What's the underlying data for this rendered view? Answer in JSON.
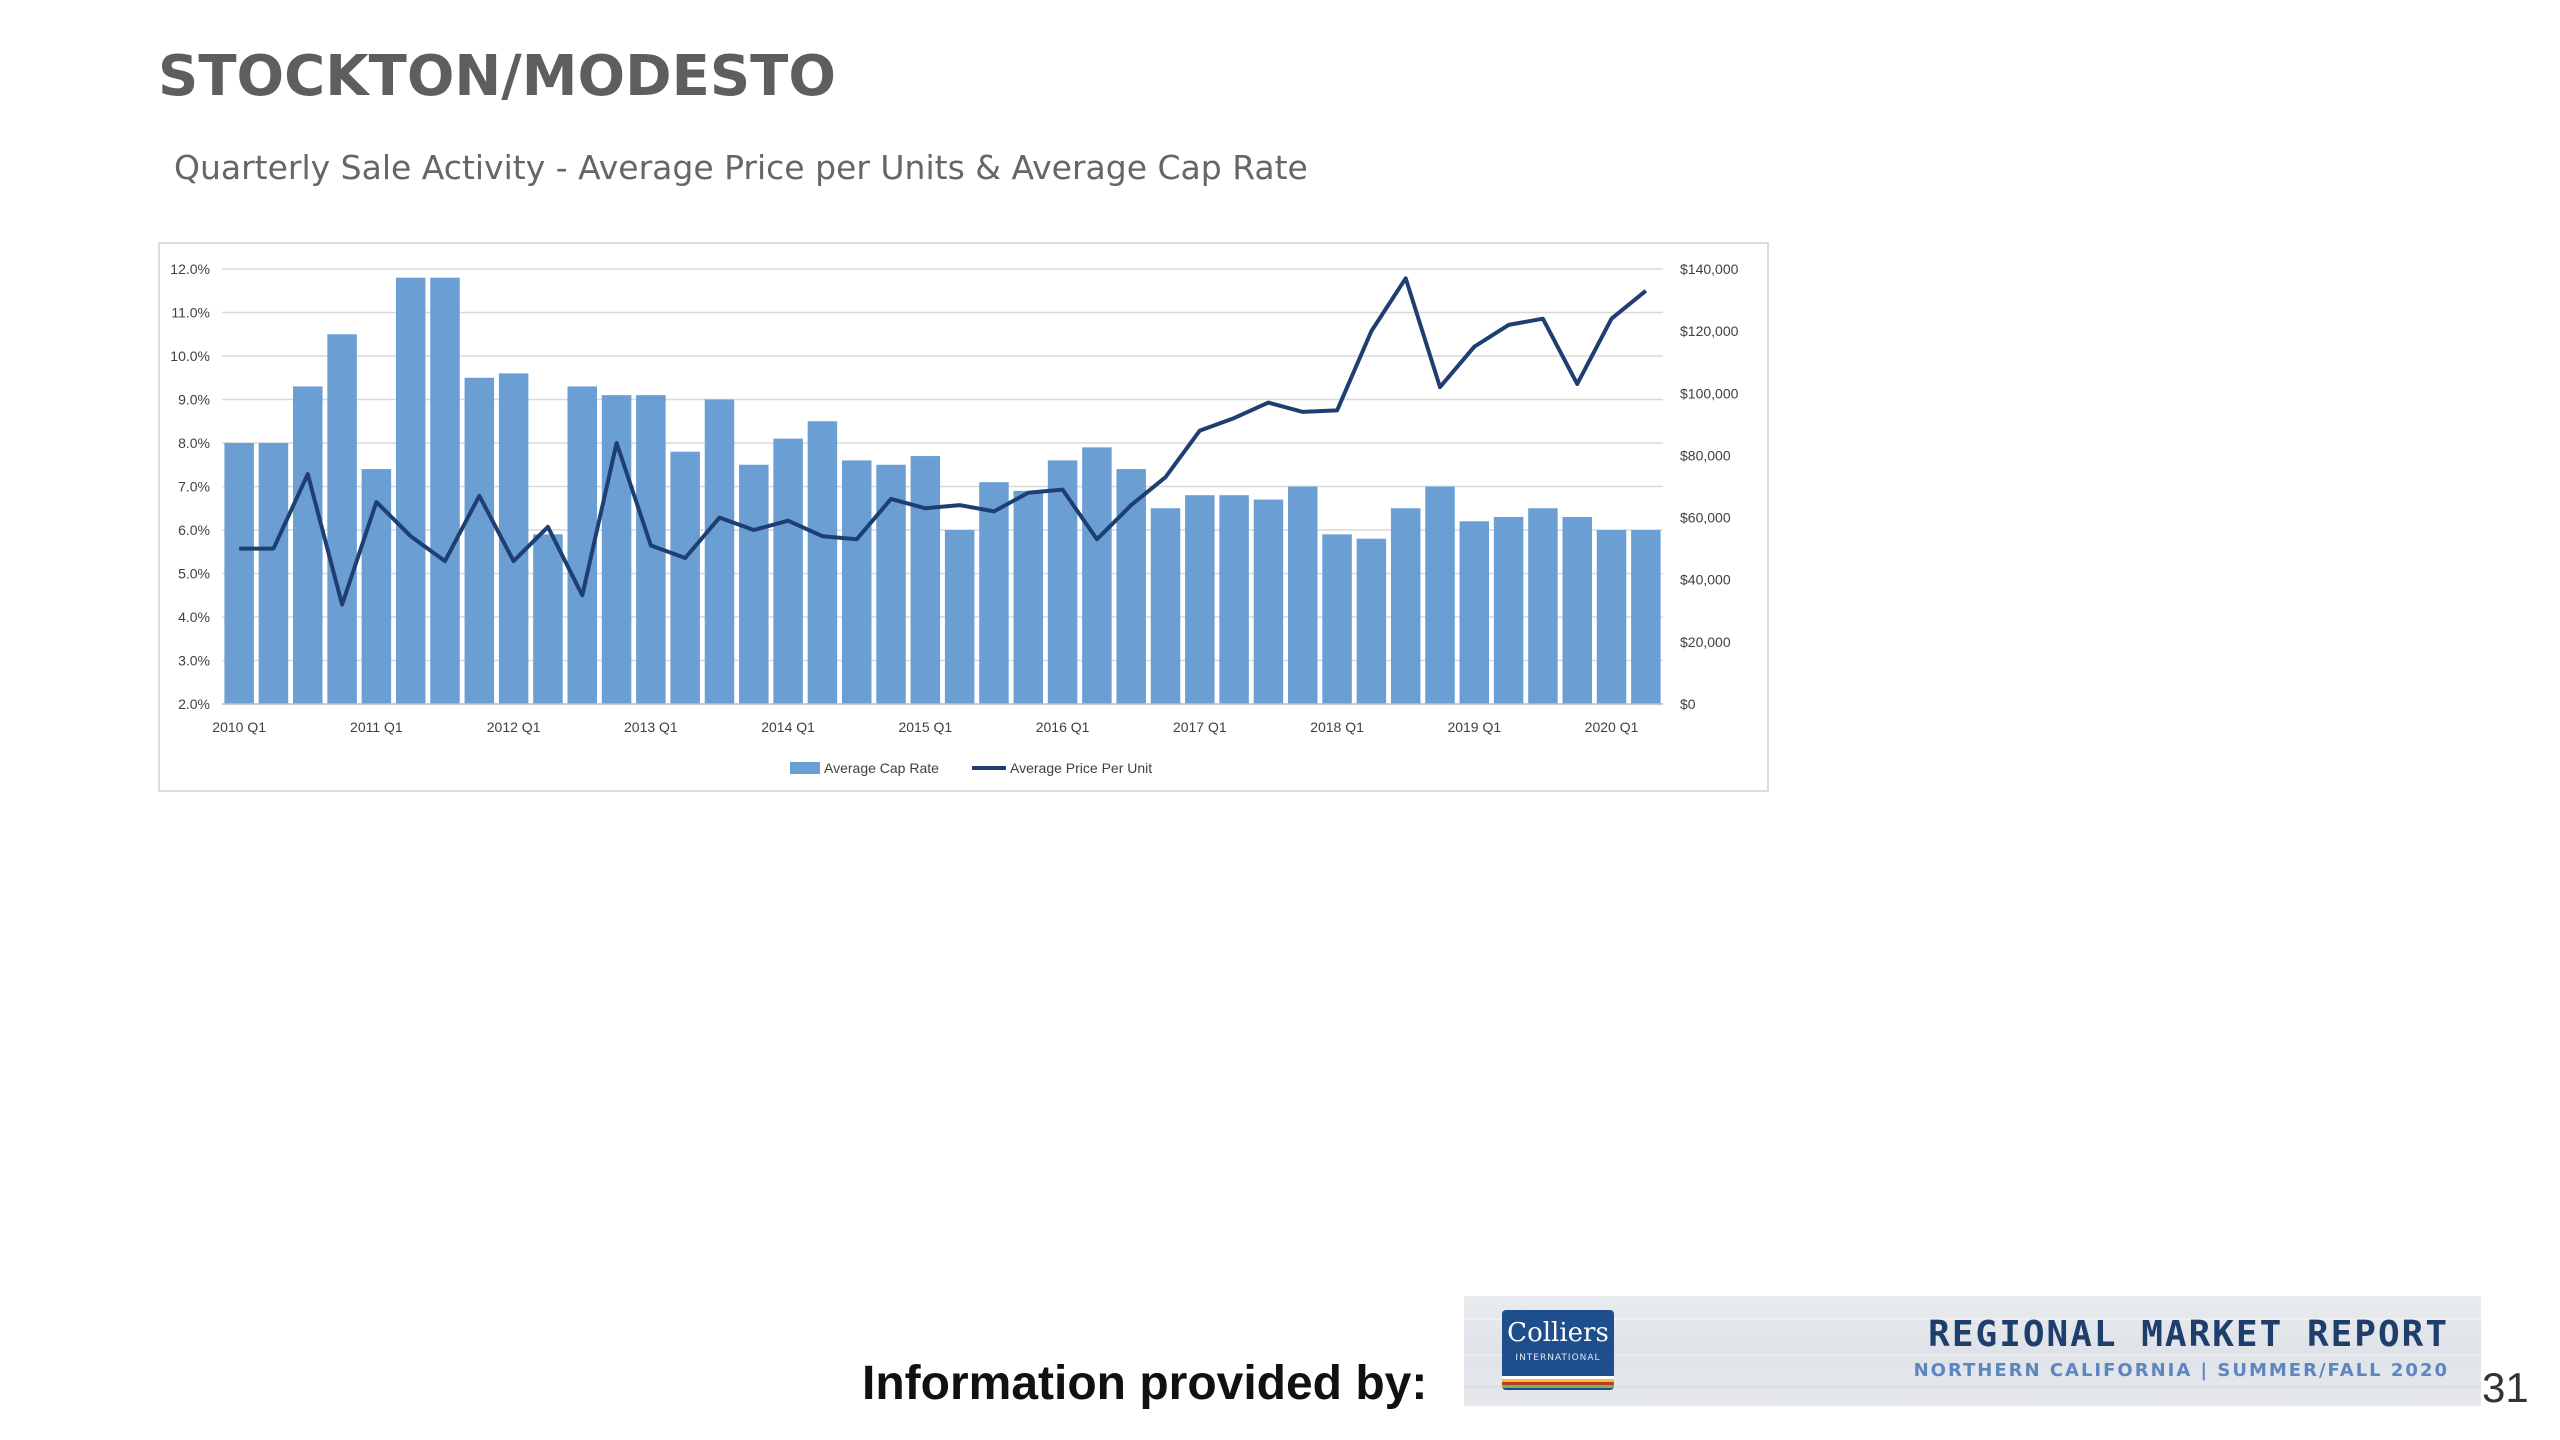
{
  "page": {
    "region_title": "STOCKTON/MODESTO",
    "subtitle": "Quarterly Sale Activity - Average Price per Units & Average Cap Rate",
    "footer_label": "Information provided by:",
    "page_number": "31"
  },
  "banner": {
    "logo_name": "Colliers",
    "logo_sub": "INTERNATIONAL",
    "title": "REGIONAL MARKET REPORT",
    "subtitle": "NORTHERN CALIFORNIA | SUMMER/FALL 2020"
  },
  "colors": {
    "bar": "#6b9fd4",
    "line": "#1f3f73",
    "grid": "#d9d9d9",
    "axis_text": "#404040",
    "logo_stripes": [
      "#ffffff",
      "#f2c230",
      "#c0392b",
      "#7ab648"
    ]
  },
  "chart_data": {
    "type": "bar",
    "title": "",
    "categories": [
      "2010 Q1",
      "2010 Q2",
      "2010 Q3",
      "2010 Q4",
      "2011 Q1",
      "2011 Q2",
      "2011 Q3",
      "2011 Q4",
      "2012 Q1",
      "2012 Q2",
      "2012 Q3",
      "2012 Q4",
      "2013 Q1",
      "2013 Q2",
      "2013 Q3",
      "2013 Q4",
      "2014 Q1",
      "2014 Q2",
      "2014 Q3",
      "2014 Q4",
      "2015 Q1",
      "2015 Q2",
      "2015 Q3",
      "2015 Q4",
      "2016 Q1",
      "2016 Q2",
      "2016 Q3",
      "2016 Q4",
      "2017 Q1",
      "2017 Q2",
      "2017 Q3",
      "2017 Q4",
      "2018 Q1",
      "2018 Q2",
      "2018 Q3",
      "2018 Q4",
      "2019 Q1",
      "2019 Q2",
      "2019 Q3",
      "2019 Q4",
      "2020 Q1",
      "2020 Q2"
    ],
    "x_tick_labels": [
      "2010 Q1",
      "2011 Q1",
      "2012 Q1",
      "2013 Q1",
      "2014 Q1",
      "2015 Q1",
      "2016 Q1",
      "2017 Q1",
      "2018 Q1",
      "2019 Q1",
      "2020 Q1"
    ],
    "series": [
      {
        "name": "Average Cap Rate",
        "type": "bar",
        "axis": "left",
        "values": [
          8.0,
          8.0,
          9.3,
          10.5,
          7.4,
          11.8,
          11.8,
          9.5,
          9.6,
          5.9,
          9.3,
          9.1,
          9.1,
          7.8,
          9.0,
          7.5,
          8.1,
          8.5,
          7.6,
          7.5,
          7.7,
          6.0,
          7.1,
          6.9,
          7.6,
          7.9,
          7.4,
          6.5,
          6.8,
          6.8,
          6.7,
          7.0,
          5.9,
          5.8,
          6.5,
          7.0,
          6.2,
          6.3,
          6.5,
          6.3,
          6.0,
          6.0
        ]
      },
      {
        "name": "Average Price Per Unit",
        "type": "line",
        "axis": "right",
        "values": [
          50000,
          50000,
          74000,
          32000,
          65000,
          54000,
          46000,
          67000,
          46000,
          57000,
          35000,
          84000,
          51000,
          47000,
          60000,
          56000,
          59000,
          54000,
          53000,
          66000,
          63000,
          64000,
          62000,
          68000,
          69000,
          53000,
          64000,
          73000,
          88000,
          92000,
          97000,
          94000,
          94500,
          120000,
          137000,
          102000,
          115000,
          122000,
          124000,
          103000,
          124000,
          133000
        ]
      }
    ],
    "y_left": {
      "range": [
        2.0,
        12.0
      ],
      "ticks": [
        "2.0%",
        "3.0%",
        "4.0%",
        "5.0%",
        "6.0%",
        "7.0%",
        "8.0%",
        "9.0%",
        "10.0%",
        "11.0%",
        "12.0%"
      ]
    },
    "y_right": {
      "range": [
        0,
        140000
      ],
      "ticks": [
        "$0",
        "$20,000",
        "$40,000",
        "$60,000",
        "$80,000",
        "$100,000",
        "$120,000",
        "$140,000"
      ]
    },
    "grid": true,
    "legend": "bottom-center"
  }
}
